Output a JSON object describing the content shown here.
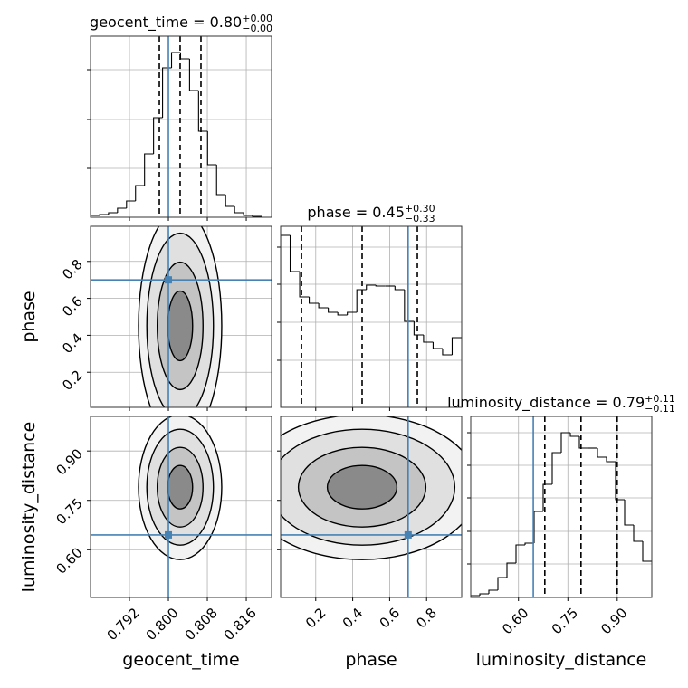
{
  "chart_data": {
    "type": "corner",
    "truth_color": "#4682b4",
    "grid": true,
    "parameters": [
      {
        "name": "geocent_time",
        "lim": [
          0.784,
          0.8212
        ],
        "ticks": [
          0.792,
          {
            "value": 0.8,
            "label": "0.800"
          },
          0.808,
          0.816
        ],
        "truth": 0.8,
        "quantiles": [
          0.79814,
          0.80241,
          0.80669
        ],
        "title": {
          "text": "geocent_time = 0.80",
          "upper": "+0.00",
          "lower": "−0.00"
        },
        "hist": {
          "bins": [
            0.784,
            0.78585,
            0.7877,
            0.78955,
            0.7914,
            0.79325,
            0.7951,
            0.79695,
            0.7988,
            0.80065,
            0.8025,
            0.80435,
            0.8062,
            0.80805,
            0.8099,
            0.81175,
            0.8136,
            0.81545,
            0.8173,
            0.81915
          ],
          "counts": [
            2,
            3,
            5,
            10,
            18,
            35,
            70,
            110,
            165,
            182,
            175,
            140,
            95,
            58,
            25,
            12,
            5,
            2,
            1
          ],
          "ylim": [
            0,
            200
          ],
          "yticks": [
            54,
            108,
            163
          ]
        }
      },
      {
        "name": "phase",
        "lim": [
          0.01,
          0.99
        ],
        "ticks": [
          0.2,
          0.4,
          0.6,
          0.8
        ],
        "truth": 0.7,
        "quantiles": [
          0.123,
          0.451,
          0.75
        ],
        "title": {
          "text": "phase = 0.45",
          "upper": "+0.30",
          "lower": "−0.33"
        },
        "hist": {
          "bins": [
            0.01,
            0.0616,
            0.1132,
            0.1647,
            0.2163,
            0.2679,
            0.3195,
            0.3711,
            0.4226,
            0.4742,
            0.5258,
            0.5774,
            0.6289,
            0.6805,
            0.7321,
            0.7837,
            0.8353,
            0.8868,
            0.9384,
            0.99
          ],
          "counts": [
            190,
            150,
            122,
            115,
            110,
            105,
            102,
            105,
            130,
            135,
            134,
            134,
            130,
            95,
            80,
            72,
            65,
            58,
            77
          ],
          "ylim": [
            0,
            200
          ],
          "yticks": [
            52,
            94,
            136,
            177
          ]
        }
      },
      {
        "name": "luminosity_distance",
        "lim": [
          0.455,
          1.005
        ],
        "ticks": [
          {
            "value": 0.6,
            "label": "0.60"
          },
          0.75,
          {
            "value": 0.9,
            "label": "0.90"
          }
        ],
        "truth": 0.645,
        "quantiles": [
          0.68,
          0.79,
          0.9
        ],
        "title": {
          "text": "luminosity_distance = 0.79",
          "upper": "+0.11",
          "lower": "−0.11"
        },
        "hist": {
          "bins": [
            0.455,
            0.4825,
            0.51,
            0.5375,
            0.565,
            0.5925,
            0.62,
            0.6475,
            0.675,
            0.7025,
            0.73,
            0.7575,
            0.785,
            0.8125,
            0.84,
            0.8675,
            0.895,
            0.9225,
            0.95,
            0.9775,
            1.005
          ],
          "counts": [
            2,
            4,
            8,
            22,
            38,
            58,
            60,
            95,
            125,
            160,
            182,
            178,
            165,
            165,
            155,
            150,
            108,
            80,
            62,
            40
          ],
          "ylim": [
            0,
            200
          ],
          "yticks": [
            37,
            73,
            110,
            146,
            182
          ]
        }
      }
    ]
  }
}
